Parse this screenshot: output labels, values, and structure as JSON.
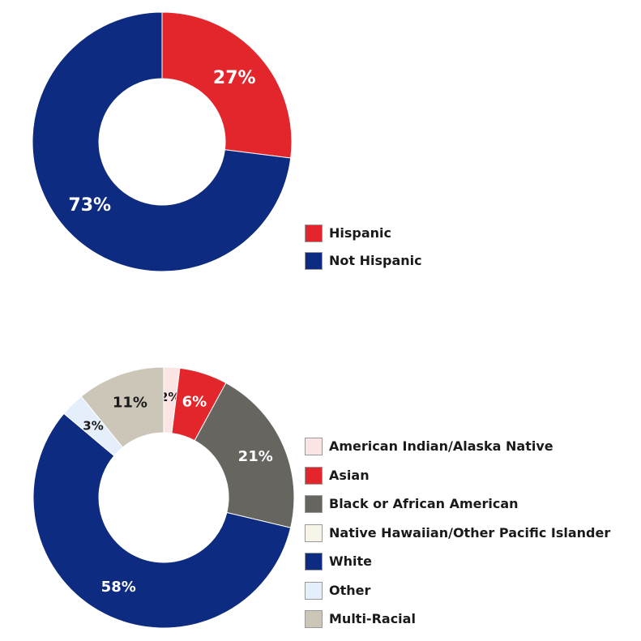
{
  "chart_data": [
    {
      "type": "pie",
      "donut": true,
      "categories": [
        "Hispanic",
        "Not Hispanic"
      ],
      "values": [
        27,
        73
      ],
      "labels": [
        "27%",
        "73%"
      ],
      "colors": [
        "#e3262b",
        "#0d2b80"
      ],
      "label_colors": [
        "#ffffff",
        "#ffffff"
      ],
      "legend": "right"
    },
    {
      "type": "pie",
      "donut": true,
      "categories": [
        "American Indian/Alaska Native",
        "Asian",
        "Black or African American",
        "Native Hawaiian/Other Pacific Islander",
        "White",
        "Other",
        "Multi-Racial"
      ],
      "values": [
        2,
        6,
        21,
        0,
        58,
        3,
        11
      ],
      "labels": [
        "2%",
        "6%",
        "21%",
        "",
        "58%",
        "3%",
        "11%"
      ],
      "colors": [
        "#fbe4e4",
        "#e3262b",
        "#66655f",
        "#f7f4ea",
        "#0d2b80",
        "#e5effb",
        "#ccc6b8"
      ],
      "label_colors": [
        "#1a1a1a",
        "#ffffff",
        "#ffffff",
        "#1a1a1a",
        "#ffffff",
        "#1a1a1a",
        "#1a1a1a"
      ],
      "legend": "right"
    }
  ]
}
